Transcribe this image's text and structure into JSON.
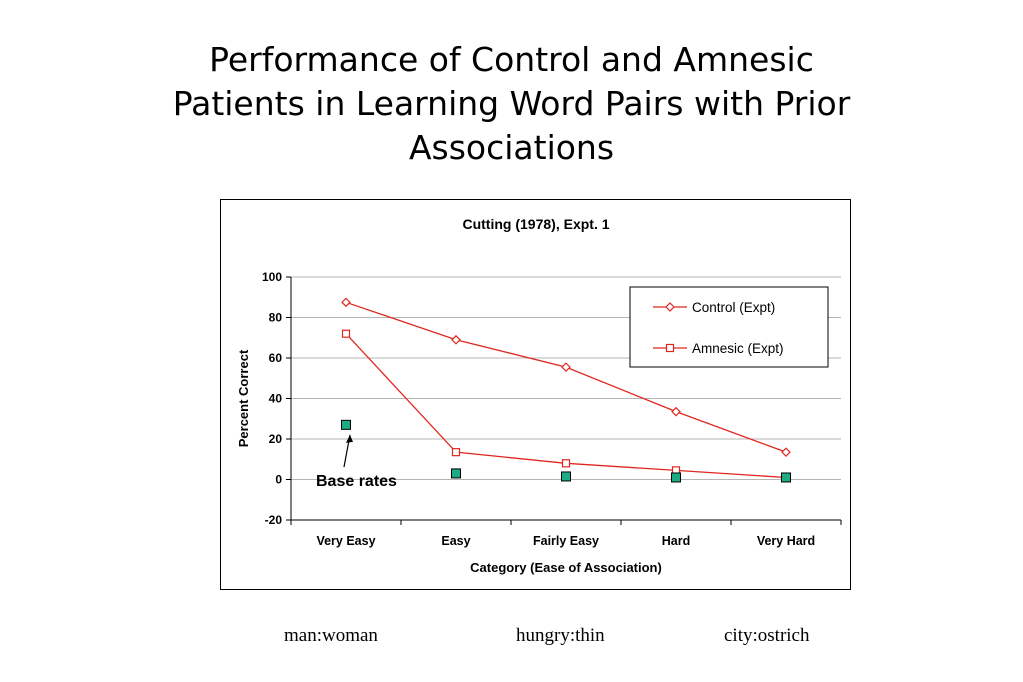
{
  "slide": {
    "title_lines": [
      "Performance of Control and Amnesic",
      "Patients in Learning Word Pairs with Prior",
      "Associations"
    ],
    "examples": [
      "man:woman",
      "hungry:thin",
      "city:ostrich"
    ]
  },
  "chart_data": {
    "type": "line",
    "title": "Cutting (1978), Expt. 1",
    "xlabel": "Category (Ease of Association)",
    "ylabel": "Percent Correct",
    "categories": [
      "Very Easy",
      "Easy",
      "Fairly Easy",
      "Hard",
      "Very Hard"
    ],
    "ylim": [
      -20,
      100
    ],
    "yticks": [
      -20,
      0,
      20,
      40,
      60,
      80,
      100
    ],
    "grid": true,
    "legend_position": "top-right",
    "series": [
      {
        "name": "Control (Expt)",
        "values": [
          87.5,
          69,
          55.5,
          33.5,
          13.5
        ],
        "color": "#e0261f",
        "marker": "diamond"
      },
      {
        "name": "Amnesic (Expt)",
        "values": [
          72,
          13.5,
          8,
          4.5,
          1
        ],
        "color": "#e0261f",
        "marker": "square"
      }
    ],
    "base_rates": {
      "values": [
        27,
        3,
        1.5,
        1,
        1
      ],
      "color": "#1dab86"
    },
    "annotation": {
      "text": "Base rates"
    }
  }
}
